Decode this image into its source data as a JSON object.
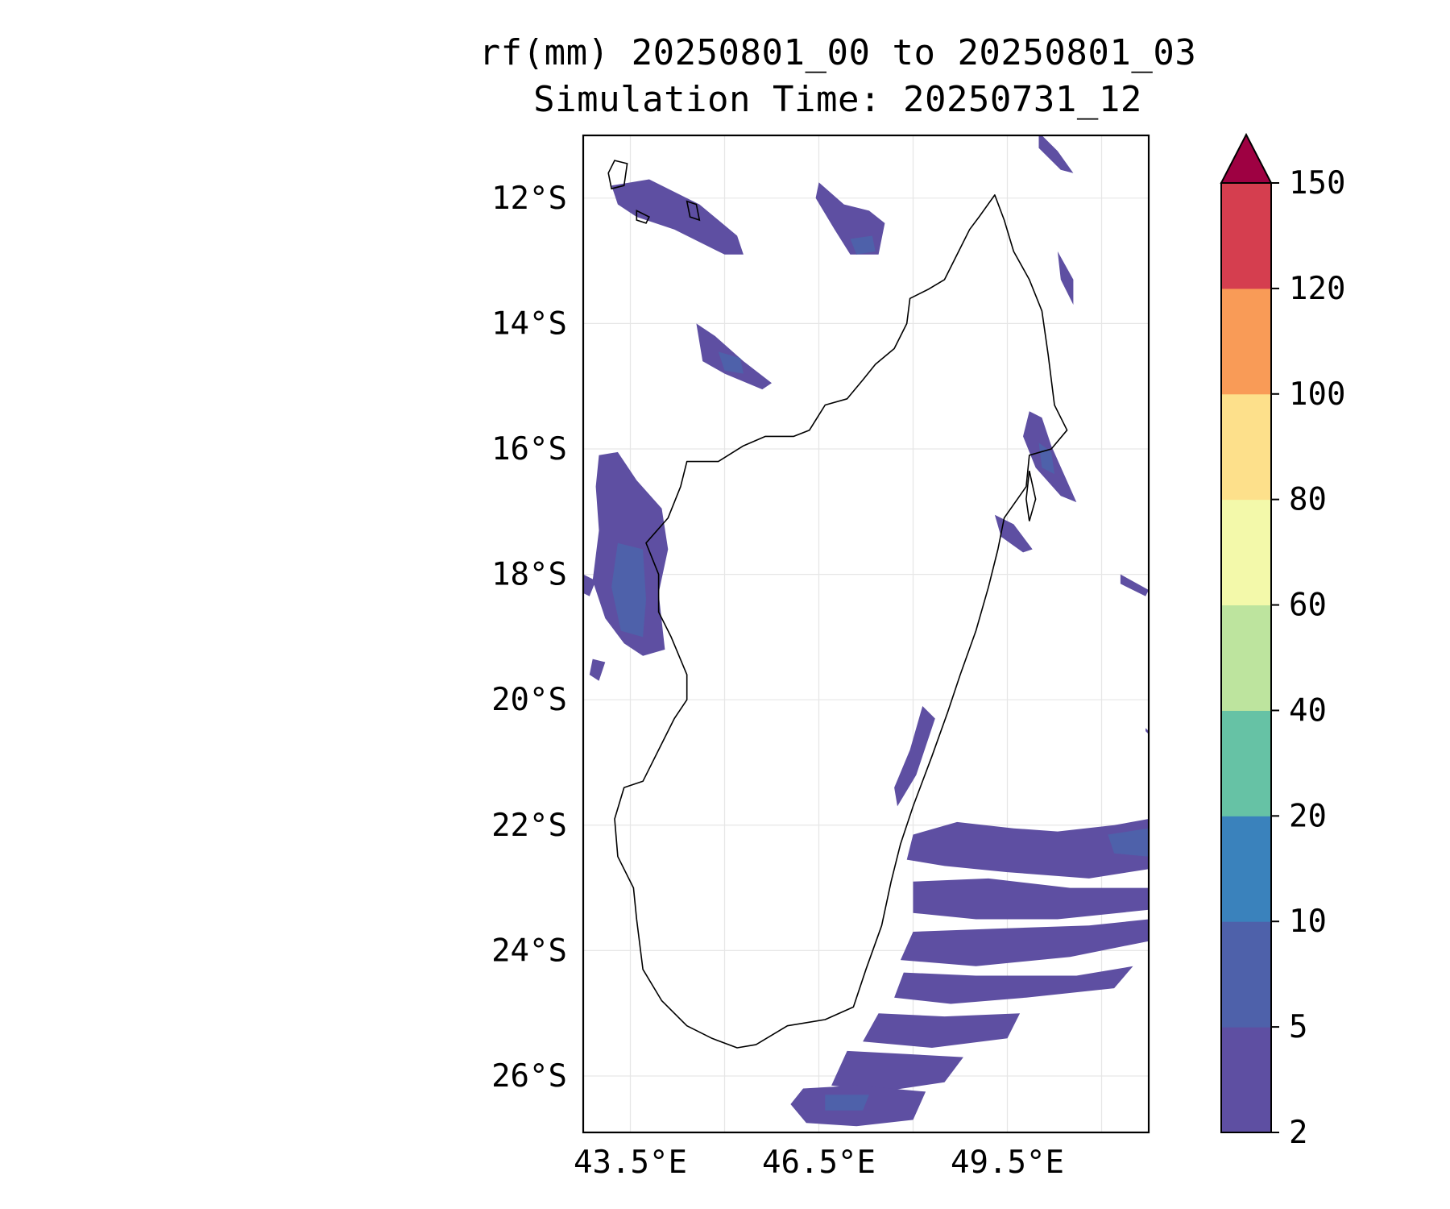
{
  "title": {
    "line1": "rf(mm) 20250801_00 to 20250801_03",
    "line2": "Simulation Time: 20250731_12"
  },
  "map": {
    "region": "Madagascar",
    "projection": "PlateCarree",
    "lon_range": [
      42.75,
      51.75
    ],
    "lat_range": [
      -26.9,
      -11.0
    ],
    "gridlines": true,
    "coastline_color": "#000000"
  },
  "axes": {
    "lat_ticks": [
      {
        "value": -12,
        "label": "12°S"
      },
      {
        "value": -14,
        "label": "14°S"
      },
      {
        "value": -16,
        "label": "16°S"
      },
      {
        "value": -18,
        "label": "18°S"
      },
      {
        "value": -20,
        "label": "20°S"
      },
      {
        "value": -22,
        "label": "22°S"
      },
      {
        "value": -24,
        "label": "24°S"
      },
      {
        "value": -26,
        "label": "26°S"
      }
    ],
    "lon_ticks": [
      {
        "value": 43.5,
        "label": "43.5°E"
      },
      {
        "value": 46.5,
        "label": "46.5°E"
      },
      {
        "value": 49.5,
        "label": "49.5°E"
      }
    ],
    "lon_gridlines": [
      43.5,
      45.0,
      46.5,
      48.0,
      49.5,
      51.0
    ],
    "lat_gridlines": [
      -12,
      -14,
      -16,
      -18,
      -20,
      -22,
      -24,
      -26
    ]
  },
  "colorbar": {
    "extend": "max",
    "extend_color": "#9e0142",
    "levels": [
      2,
      5,
      10,
      20,
      40,
      60,
      80,
      100,
      120,
      150
    ],
    "labels": [
      "2",
      "5",
      "10",
      "20",
      "40",
      "60",
      "80",
      "100",
      "120",
      "150"
    ],
    "colors": [
      "#5e4fa2",
      "#4e61aa",
      "#3a82bc",
      "#66c2a5",
      "#bde49e",
      "#f3f9aa",
      "#fde08b",
      "#f99b57",
      "#d53e4f"
    ]
  },
  "chart_data": {
    "type": "heatmap",
    "title": "rf(mm) 20250801_00 to 20250801_03",
    "subtitle": "Simulation Time: 20250731_12",
    "variable": "rf(mm)",
    "xlabel": "",
    "ylabel": "",
    "xlim": [
      42.75,
      51.75
    ],
    "ylim": [
      -26.9,
      -11.0
    ],
    "grid": true,
    "coastline": [
      [
        49.3,
        -11.95
      ],
      [
        49.45,
        -12.35
      ],
      [
        49.6,
        -12.85
      ],
      [
        49.85,
        -13.3
      ],
      [
        50.05,
        -13.8
      ],
      [
        50.15,
        -14.5
      ],
      [
        50.25,
        -15.3
      ],
      [
        50.45,
        -15.7
      ],
      [
        50.2,
        -16.0
      ],
      [
        49.85,
        -16.1
      ],
      [
        49.8,
        -16.6
      ],
      [
        49.45,
        -17.1
      ],
      [
        49.35,
        -17.6
      ],
      [
        49.2,
        -18.2
      ],
      [
        49.0,
        -18.9
      ],
      [
        48.75,
        -19.6
      ],
      [
        48.55,
        -20.2
      ],
      [
        48.3,
        -20.9
      ],
      [
        48.0,
        -21.7
      ],
      [
        47.8,
        -22.3
      ],
      [
        47.65,
        -22.9
      ],
      [
        47.5,
        -23.6
      ],
      [
        47.25,
        -24.3
      ],
      [
        47.05,
        -24.9
      ],
      [
        46.6,
        -25.1
      ],
      [
        46.0,
        -25.2
      ],
      [
        45.5,
        -25.5
      ],
      [
        45.2,
        -25.55
      ],
      [
        44.8,
        -25.4
      ],
      [
        44.4,
        -25.2
      ],
      [
        44.0,
        -24.8
      ],
      [
        43.7,
        -24.3
      ],
      [
        43.6,
        -23.5
      ],
      [
        43.55,
        -23.0
      ],
      [
        43.3,
        -22.5
      ],
      [
        43.25,
        -21.9
      ],
      [
        43.4,
        -21.4
      ],
      [
        43.7,
        -21.3
      ],
      [
        43.95,
        -20.8
      ],
      [
        44.2,
        -20.3
      ],
      [
        44.4,
        -20.0
      ],
      [
        44.4,
        -19.6
      ],
      [
        44.15,
        -19.0
      ],
      [
        43.95,
        -18.6
      ],
      [
        43.95,
        -18.0
      ],
      [
        43.75,
        -17.5
      ],
      [
        44.1,
        -17.1
      ],
      [
        44.3,
        -16.6
      ],
      [
        44.4,
        -16.2
      ],
      [
        44.9,
        -16.2
      ],
      [
        45.3,
        -15.95
      ],
      [
        45.65,
        -15.8
      ],
      [
        46.1,
        -15.8
      ],
      [
        46.35,
        -15.7
      ],
      [
        46.6,
        -15.3
      ],
      [
        46.95,
        -15.2
      ],
      [
        47.2,
        -14.9
      ],
      [
        47.4,
        -14.65
      ],
      [
        47.7,
        -14.4
      ],
      [
        47.9,
        -14.0
      ],
      [
        47.95,
        -13.6
      ],
      [
        48.25,
        -13.45
      ],
      [
        48.5,
        -13.3
      ],
      [
        48.75,
        -12.8
      ],
      [
        48.9,
        -12.5
      ],
      [
        49.05,
        -12.3
      ],
      [
        49.3,
        -11.95
      ]
    ],
    "islands": [
      [
        [
          43.25,
          -11.4
        ],
        [
          43.45,
          -11.45
        ],
        [
          43.4,
          -11.8
        ],
        [
          43.2,
          -11.85
        ],
        [
          43.15,
          -11.6
        ]
      ],
      [
        [
          44.4,
          -12.05
        ],
        [
          44.55,
          -12.1
        ],
        [
          44.6,
          -12.35
        ],
        [
          44.45,
          -12.3
        ]
      ],
      [
        [
          43.6,
          -12.2
        ],
        [
          43.8,
          -12.3
        ],
        [
          43.75,
          -12.4
        ],
        [
          43.6,
          -12.35
        ]
      ],
      [
        [
          49.85,
          -16.35
        ],
        [
          49.95,
          -16.8
        ],
        [
          49.85,
          -17.15
        ],
        [
          49.8,
          -16.8
        ]
      ]
    ],
    "precip_regions": [
      {
        "level": 2.5,
        "points": [
          [
            43.2,
            -11.8
          ],
          [
            43.8,
            -11.7
          ],
          [
            44.6,
            -12.1
          ],
          [
            45.2,
            -12.6
          ],
          [
            45.3,
            -12.9
          ],
          [
            45.0,
            -12.9
          ],
          [
            44.2,
            -12.5
          ],
          [
            43.6,
            -12.3
          ],
          [
            43.3,
            -12.1
          ]
        ]
      },
      {
        "level": 2.5,
        "points": [
          [
            46.5,
            -11.75
          ],
          [
            46.9,
            -12.1
          ],
          [
            47.3,
            -12.2
          ],
          [
            47.55,
            -12.4
          ],
          [
            47.45,
            -12.9
          ],
          [
            47.0,
            -12.9
          ],
          [
            46.75,
            -12.5
          ],
          [
            46.45,
            -12.0
          ]
        ]
      },
      {
        "level": 5,
        "points": [
          [
            47.0,
            -12.65
          ],
          [
            47.35,
            -12.6
          ],
          [
            47.4,
            -12.85
          ],
          [
            47.1,
            -12.9
          ]
        ]
      },
      {
        "level": 2.5,
        "points": [
          [
            50.0,
            -10.95
          ],
          [
            50.3,
            -11.25
          ],
          [
            50.55,
            -11.6
          ],
          [
            50.35,
            -11.55
          ],
          [
            50.0,
            -11.2
          ]
        ]
      },
      {
        "level": 2.5,
        "points": [
          [
            50.3,
            -12.85
          ],
          [
            50.55,
            -13.3
          ],
          [
            50.55,
            -13.7
          ],
          [
            50.35,
            -13.3
          ]
        ]
      },
      {
        "level": 2.5,
        "points": [
          [
            44.55,
            -14.0
          ],
          [
            44.85,
            -14.2
          ],
          [
            45.3,
            -14.6
          ],
          [
            45.75,
            -14.95
          ],
          [
            45.6,
            -15.05
          ],
          [
            45.0,
            -14.8
          ],
          [
            44.65,
            -14.6
          ]
        ]
      },
      {
        "level": 5,
        "points": [
          [
            44.9,
            -14.45
          ],
          [
            45.25,
            -14.55
          ],
          [
            45.3,
            -14.8
          ],
          [
            45.0,
            -14.75
          ]
        ]
      },
      {
        "level": 2.5,
        "points": [
          [
            43.0,
            -16.1
          ],
          [
            43.3,
            -16.05
          ],
          [
            43.6,
            -16.5
          ],
          [
            44.0,
            -16.95
          ],
          [
            44.1,
            -17.6
          ],
          [
            43.95,
            -18.3
          ],
          [
            44.05,
            -19.2
          ],
          [
            43.7,
            -19.3
          ],
          [
            43.4,
            -19.1
          ],
          [
            43.1,
            -18.7
          ],
          [
            42.9,
            -18.1
          ],
          [
            43.0,
            -17.3
          ],
          [
            42.95,
            -16.6
          ]
        ]
      },
      {
        "level": 5,
        "points": [
          [
            43.3,
            -17.5
          ],
          [
            43.7,
            -17.6
          ],
          [
            43.75,
            -18.4
          ],
          [
            43.7,
            -19.0
          ],
          [
            43.35,
            -18.9
          ],
          [
            43.2,
            -18.2
          ]
        ]
      },
      {
        "level": 2.5,
        "points": [
          [
            42.75,
            -18.0
          ],
          [
            42.95,
            -18.1
          ],
          [
            42.85,
            -18.35
          ],
          [
            42.75,
            -18.3
          ]
        ]
      },
      {
        "level": 2.5,
        "points": [
          [
            42.9,
            -19.35
          ],
          [
            43.1,
            -19.4
          ],
          [
            43.0,
            -19.7
          ],
          [
            42.85,
            -19.6
          ]
        ]
      },
      {
        "level": 2.5,
        "points": [
          [
            49.85,
            -15.4
          ],
          [
            50.05,
            -15.5
          ],
          [
            50.2,
            -15.95
          ],
          [
            50.4,
            -16.4
          ],
          [
            50.6,
            -16.85
          ],
          [
            50.35,
            -16.75
          ],
          [
            49.95,
            -16.3
          ],
          [
            49.75,
            -15.8
          ]
        ]
      },
      {
        "level": 5,
        "points": [
          [
            50.0,
            -15.9
          ],
          [
            50.2,
            -16.05
          ],
          [
            50.25,
            -16.4
          ],
          [
            50.05,
            -16.3
          ]
        ]
      },
      {
        "level": 2.5,
        "points": [
          [
            49.3,
            -17.05
          ],
          [
            49.6,
            -17.2
          ],
          [
            49.9,
            -17.6
          ],
          [
            49.75,
            -17.65
          ],
          [
            49.4,
            -17.4
          ]
        ]
      },
      {
        "level": 2.5,
        "points": [
          [
            48.15,
            -20.1
          ],
          [
            48.35,
            -20.3
          ],
          [
            48.05,
            -21.2
          ],
          [
            47.75,
            -21.7
          ],
          [
            47.7,
            -21.4
          ],
          [
            47.95,
            -20.8
          ]
        ]
      },
      {
        "level": 2.5,
        "points": [
          [
            51.3,
            -18.0
          ],
          [
            51.75,
            -18.25
          ],
          [
            51.7,
            -18.35
          ],
          [
            51.3,
            -18.15
          ]
        ]
      },
      {
        "level": 2.5,
        "points": [
          [
            51.7,
            -20.45
          ],
          [
            51.75,
            -20.5
          ],
          [
            51.75,
            -20.55
          ],
          [
            51.7,
            -20.5
          ]
        ]
      },
      {
        "level": 2.5,
        "points": [
          [
            48.0,
            -22.15
          ],
          [
            48.7,
            -21.95
          ],
          [
            49.6,
            -22.05
          ],
          [
            50.3,
            -22.1
          ],
          [
            51.2,
            -22.0
          ],
          [
            51.75,
            -21.9
          ],
          [
            51.75,
            -22.7
          ],
          [
            50.8,
            -22.85
          ],
          [
            49.5,
            -22.75
          ],
          [
            48.5,
            -22.65
          ],
          [
            47.9,
            -22.55
          ]
        ]
      },
      {
        "level": 5,
        "points": [
          [
            51.1,
            -22.15
          ],
          [
            51.75,
            -22.05
          ],
          [
            51.75,
            -22.5
          ],
          [
            51.2,
            -22.45
          ]
        ]
      },
      {
        "level": 2.5,
        "points": [
          [
            48.0,
            -22.9
          ],
          [
            49.2,
            -22.85
          ],
          [
            50.5,
            -23.0
          ],
          [
            51.75,
            -23.0
          ],
          [
            51.75,
            -23.35
          ],
          [
            50.3,
            -23.5
          ],
          [
            49.0,
            -23.5
          ],
          [
            48.0,
            -23.4
          ]
        ]
      },
      {
        "level": 2.5,
        "points": [
          [
            48.0,
            -23.7
          ],
          [
            49.3,
            -23.65
          ],
          [
            50.8,
            -23.6
          ],
          [
            51.75,
            -23.5
          ],
          [
            51.75,
            -23.85
          ],
          [
            50.5,
            -24.1
          ],
          [
            49.0,
            -24.25
          ],
          [
            47.8,
            -24.15
          ]
        ]
      },
      {
        "level": 2.5,
        "points": [
          [
            47.85,
            -24.35
          ],
          [
            49.0,
            -24.4
          ],
          [
            50.6,
            -24.4
          ],
          [
            51.5,
            -24.25
          ],
          [
            51.2,
            -24.6
          ],
          [
            49.8,
            -24.75
          ],
          [
            48.6,
            -24.85
          ],
          [
            47.7,
            -24.75
          ]
        ]
      },
      {
        "level": 2.5,
        "points": [
          [
            47.45,
            -25.0
          ],
          [
            48.5,
            -25.05
          ],
          [
            49.7,
            -25.0
          ],
          [
            49.5,
            -25.4
          ],
          [
            48.3,
            -25.55
          ],
          [
            47.2,
            -25.45
          ]
        ]
      },
      {
        "level": 2.5,
        "points": [
          [
            46.95,
            -25.6
          ],
          [
            47.9,
            -25.65
          ],
          [
            48.8,
            -25.7
          ],
          [
            48.5,
            -26.1
          ],
          [
            47.5,
            -26.25
          ],
          [
            46.7,
            -26.15
          ]
        ]
      },
      {
        "level": 2.5,
        "points": [
          [
            46.25,
            -26.2
          ],
          [
            47.1,
            -26.15
          ],
          [
            48.2,
            -26.25
          ],
          [
            48.0,
            -26.7
          ],
          [
            47.1,
            -26.8
          ],
          [
            46.3,
            -26.75
          ],
          [
            46.05,
            -26.45
          ]
        ]
      },
      {
        "level": 5,
        "points": [
          [
            46.6,
            -26.3
          ],
          [
            47.3,
            -26.3
          ],
          [
            47.2,
            -26.55
          ],
          [
            46.6,
            -26.55
          ]
        ]
      }
    ]
  }
}
